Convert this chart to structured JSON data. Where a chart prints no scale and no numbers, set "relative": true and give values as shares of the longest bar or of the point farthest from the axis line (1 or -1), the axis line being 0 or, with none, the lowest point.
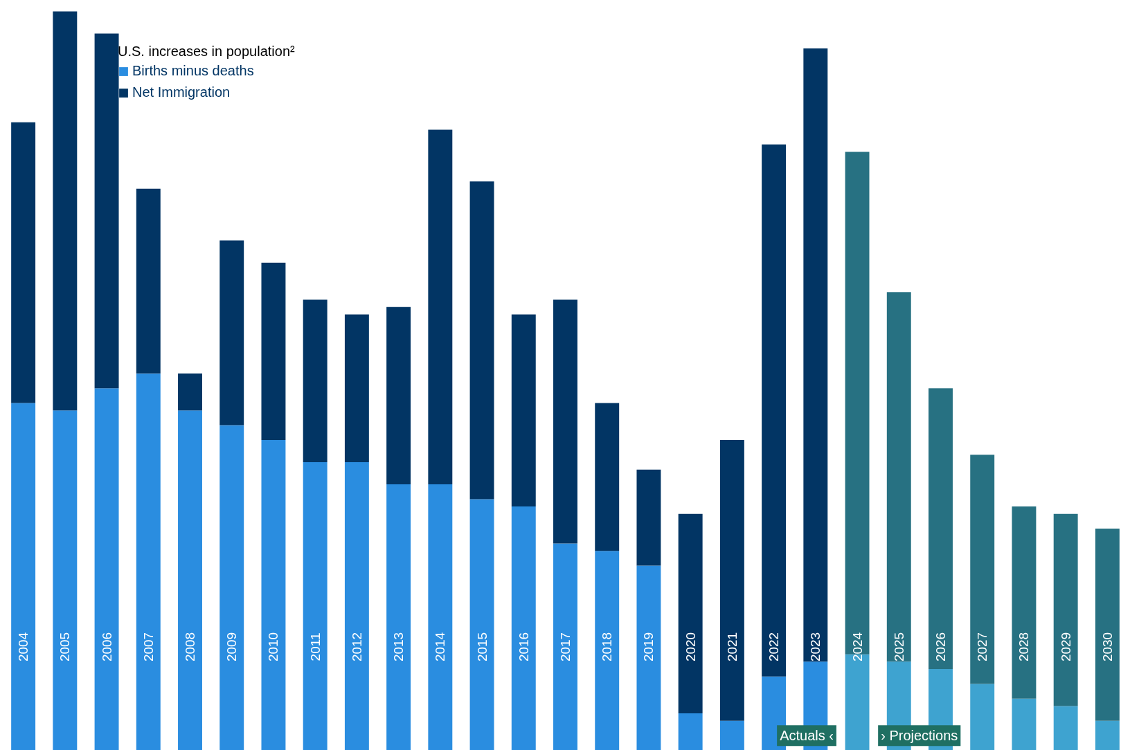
{
  "chart_data": {
    "type": "bar",
    "stacked": true,
    "relative": true,
    "legend": "top left",
    "legend_title": "U.S. increases in population²",
    "categories": [
      "2004",
      "2005",
      "2006",
      "2007",
      "2008",
      "2009",
      "2010",
      "2011",
      "2012",
      "2013",
      "2014",
      "2015",
      "2016",
      "2017",
      "2018",
      "2019",
      "2020",
      "2021",
      "2022",
      "2023",
      "2024",
      "2025",
      "2026",
      "2027",
      "2028",
      "2029",
      "2030"
    ],
    "series": [
      {
        "name": "Births minus deaths",
        "color": "#2a8de0",
        "colors": [
          "#2a8de0",
          "#2a8de0",
          "#2a8de0",
          "#2a8de0",
          "#2a8de0",
          "#2a8de0",
          "#2a8de0",
          "#2a8de0",
          "#2a8de0",
          "#2a8de0",
          "#2a8de0",
          "#2a8de0",
          "#2a8de0",
          "#2a8de0",
          "#2a8de0",
          "#2a8de0",
          "#2a8de0",
          "#2a8de0",
          "#2a8de0",
          "#2a8de0",
          "#3ea3d0",
          "#3ea3d0",
          "#3ea3d0",
          "#3ea3d0",
          "#3ea3d0",
          "#3ea3d0",
          "#3ea3d0"
        ],
        "values": [
          0.47,
          0.46,
          0.49,
          0.51,
          0.46,
          0.44,
          0.42,
          0.39,
          0.39,
          0.36,
          0.36,
          0.34,
          0.33,
          0.28,
          0.27,
          0.25,
          0.05,
          0.04,
          0.1,
          0.12,
          0.13,
          0.12,
          0.11,
          0.09,
          0.07,
          0.06,
          0.04
        ]
      },
      {
        "name": "Net Immigration",
        "color": "#023564",
        "colors": [
          "#023564",
          "#023564",
          "#023564",
          "#023564",
          "#023564",
          "#023564",
          "#023564",
          "#023564",
          "#023564",
          "#023564",
          "#023564",
          "#023564",
          "#023564",
          "#023564",
          "#023564",
          "#023564",
          "#023564",
          "#023564",
          "#023564",
          "#023564",
          "#277182",
          "#277182",
          "#277182",
          "#277182",
          "#277182",
          "#277182",
          "#277182"
        ],
        "values": [
          0.38,
          0.54,
          0.48,
          0.25,
          0.05,
          0.25,
          0.24,
          0.22,
          0.2,
          0.24,
          0.48,
          0.43,
          0.26,
          0.33,
          0.2,
          0.13,
          0.27,
          0.38,
          0.72,
          0.83,
          0.68,
          0.5,
          0.38,
          0.31,
          0.26,
          0.26,
          0.26
        ]
      }
    ],
    "annotations": [
      "Actuals ‹",
      "› Projections"
    ]
  }
}
